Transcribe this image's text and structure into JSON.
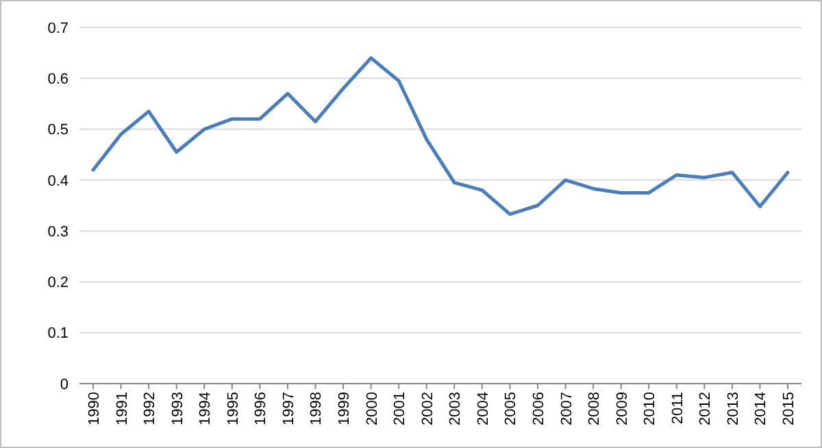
{
  "chart_data": {
    "type": "line",
    "categories": [
      "1990",
      "1991",
      "1992",
      "1993",
      "1994",
      "1995",
      "1996",
      "1997",
      "1998",
      "1999",
      "2000",
      "2001",
      "2002",
      "2003",
      "2004",
      "2005",
      "2006",
      "2007",
      "2008",
      "2009",
      "2010",
      "2011",
      "2012",
      "2013",
      "2014",
      "2015"
    ],
    "series": [
      {
        "color": "#4a7ebb",
        "values": [
          0.42,
          0.49,
          0.535,
          0.455,
          0.5,
          0.52,
          0.52,
          0.57,
          0.515,
          0.58,
          0.64,
          0.595,
          0.48,
          0.395,
          0.38,
          0.333,
          0.35,
          0.4,
          0.383,
          0.375,
          0.375,
          0.41,
          0.405,
          0.415,
          0.348,
          0.415
        ]
      }
    ],
    "ylim": [
      0,
      0.7
    ],
    "yticks": [
      0,
      0.1,
      0.2,
      0.3,
      0.4,
      0.5,
      0.6,
      0.7
    ],
    "grid": "y",
    "marker": "none",
    "line_style": "solid"
  }
}
